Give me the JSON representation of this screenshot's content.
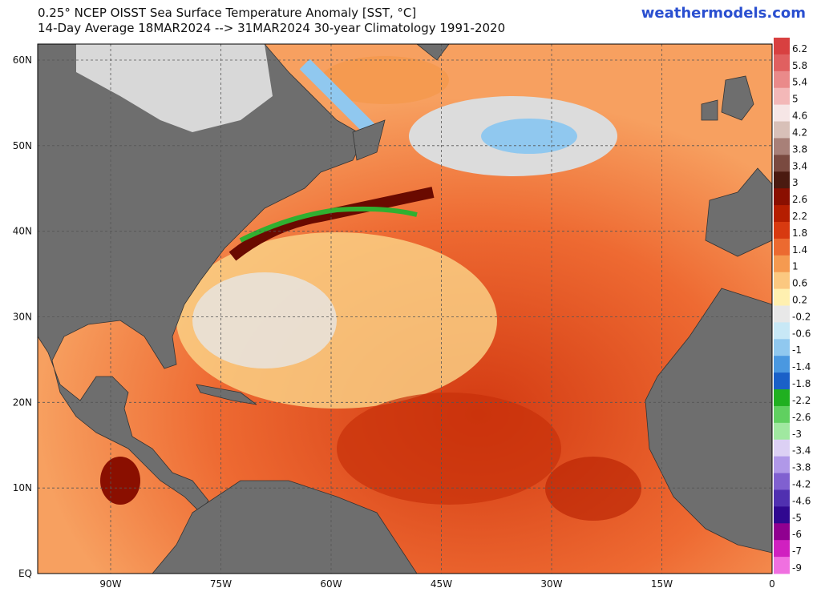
{
  "header": {
    "title": "0.25° NCEP OISST Sea Surface Temperature Anomaly [SST, °C]",
    "subtitle": "14-Day Average 18MAR2024 --> 31MAR2024   30-year Climatology 1991-2020",
    "brand": "weathermodels.com"
  },
  "map": {
    "lat_labels": [
      "60N",
      "50N",
      "40N",
      "30N",
      "20N",
      "10N",
      "EQ"
    ],
    "lon_labels": [
      "90W",
      "75W",
      "60W",
      "45W",
      "30W",
      "15W",
      "0"
    ]
  },
  "colorbar": {
    "labels": [
      "6.2",
      "5.8",
      "5.4",
      "5",
      "4.6",
      "4.2",
      "3.8",
      "3.4",
      "3",
      "2.6",
      "2.2",
      "1.8",
      "1.4",
      "1",
      "0.6",
      "0.2",
      "-0.2",
      "-0.6",
      "-1",
      "-1.4",
      "-1.8",
      "-2.2",
      "-2.6",
      "-3",
      "-3.4",
      "-3.8",
      "-4.2",
      "-4.6",
      "-5",
      "-6",
      "-7",
      "-9"
    ],
    "colors": [
      "#d84040",
      "#e06060",
      "#ea8a8a",
      "#f3b8b8",
      "#f6e6e6",
      "#d8c0b8",
      "#a88078",
      "#7a4a40",
      "#4a1a10",
      "#8a0f00",
      "#b51e00",
      "#d83a10",
      "#ec6a30",
      "#f59a50",
      "#fbc880",
      "#fff0b0",
      "#e8e8e8",
      "#c8e8f6",
      "#90c8ef",
      "#4a98e0",
      "#1a60c8",
      "#20b020",
      "#60d060",
      "#a0e8a0",
      "#dcd0f4",
      "#b098e8",
      "#8060d0",
      "#5030b0",
      "#300890",
      "#900090",
      "#d020c0",
      "#f070e0"
    ]
  }
}
